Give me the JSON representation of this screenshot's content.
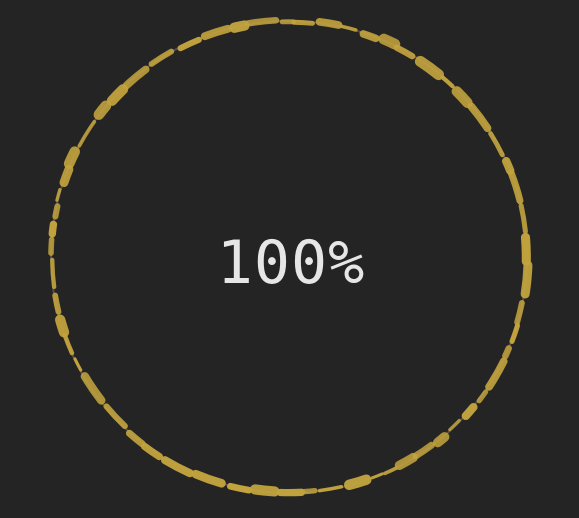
{
  "progress": {
    "label": "100%",
    "value": 100
  },
  "colors": {
    "background": "#242424",
    "ring": "#c2a33e",
    "track": "#5a5a5a",
    "text": "#e6e6e6"
  }
}
